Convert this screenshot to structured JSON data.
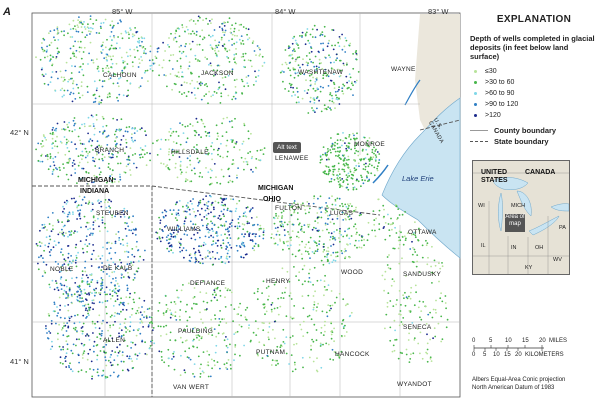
{
  "panel_letter": "A",
  "longitude_labels": [
    "85° W",
    "84° W",
    "83° W"
  ],
  "latitude_labels": [
    "42° N",
    "41° N"
  ],
  "legend": {
    "title": "EXPLANATION",
    "subtitle": "Depth of wells completed in glacial deposits (in feet below land surface)",
    "categories": [
      {
        "label": "≤30",
        "color": "#b7e39a"
      },
      {
        "label": ">30 to 60",
        "color": "#47b64a"
      },
      {
        "label": ">60 to 90",
        "color": "#7fd7e8"
      },
      {
        "label": ">90 to 120",
        "color": "#2f7fc4"
      },
      {
        "label": ">120",
        "color": "#1b2a8c"
      }
    ],
    "county_boundary": "County boundary",
    "state_boundary": "State boundary"
  },
  "states": [
    "MICHIGAN",
    "INDIANA",
    "MICHIGAN",
    "OHIO"
  ],
  "counties": [
    "CALHOUN",
    "JACKSON",
    "WASHTENAW",
    "WAYNE",
    "BRANCH",
    "HILLSDALE",
    "LENAWEE",
    "MONROE",
    "STEUBEN",
    "WILLIAMS",
    "FULTON",
    "LUCAS",
    "OTTAWA",
    "DE KALB",
    "DEFIANCE",
    "HENRY",
    "WOOD",
    "SANDUSKY",
    "NOBLE",
    "ALLEN",
    "PAULDING",
    "PUTNAM",
    "HANCOCK",
    "SENECA",
    "VAN WERT",
    "WYANDOT"
  ],
  "lake_label": "Lake Erie",
  "us_canada_label": "U.S.\nCANADA",
  "alt_text_button": "Alt text",
  "inset": {
    "countries": [
      "UNITED STATES",
      "CANADA"
    ],
    "states": [
      "WI",
      "MICH",
      "IL",
      "IN",
      "OH",
      "PA",
      "KY",
      "WV"
    ],
    "area_label": "Area of map"
  },
  "scale": {
    "miles_ticks": [
      "0",
      "5",
      "10",
      "15",
      "20"
    ],
    "miles_unit": "MILES",
    "km_ticks": [
      "0",
      "5",
      "10",
      "15",
      "20"
    ],
    "km_unit": "KILOMETERS"
  },
  "projection": {
    "line1": "Albers Equal-Area Conic projection",
    "line2": "North American Datum of 1983"
  }
}
